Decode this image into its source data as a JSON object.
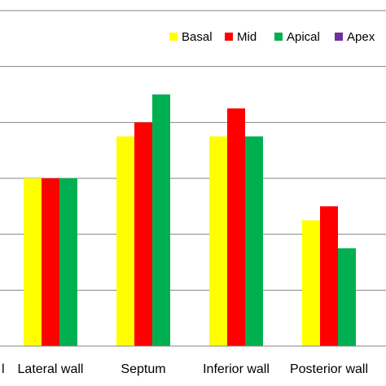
{
  "chart_data": {
    "type": "bar",
    "categories": [
      "Lateral wall",
      "Septum",
      "Inferior wall",
      "Posterior wall"
    ],
    "first_category_fragment": "l",
    "series": [
      {
        "name": "Basal",
        "color": "#FFFF00",
        "values": [
          3.0,
          3.75,
          3.75,
          2.25
        ]
      },
      {
        "name": "Mid",
        "color": "#FF0000",
        "values": [
          3.0,
          4.0,
          4.25,
          2.5
        ]
      },
      {
        "name": "Apical",
        "color": "#00B050",
        "values": [
          3.0,
          4.5,
          3.75,
          1.75
        ]
      },
      {
        "name": "Apex",
        "color": "#7030A0",
        "values": [
          0,
          0,
          0,
          0
        ]
      }
    ],
    "ylim": [
      0,
      6
    ],
    "y_gridline_step": 1,
    "grid": true,
    "legend_position": "top-right",
    "title": "",
    "xlabel": "",
    "ylabel": ""
  }
}
